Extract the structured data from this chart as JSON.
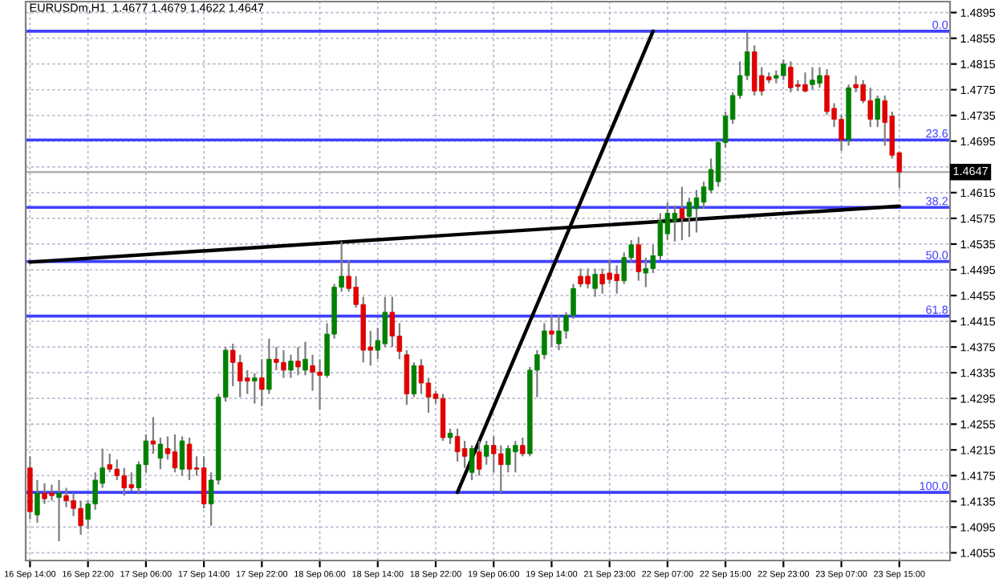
{
  "chart_data": {
    "type": "candlestick",
    "title": "EURUSDm,H1  1.4677 1.4679 1.4622 1.4647",
    "categories": [
      "16 Sep 14:00",
      null,
      null,
      null,
      null,
      null,
      null,
      null,
      "16 Sep 22:00",
      null,
      null,
      null,
      null,
      null,
      null,
      null,
      "17 Sep 06:00",
      null,
      null,
      null,
      null,
      null,
      null,
      null,
      "17 Sep 14:00",
      null,
      null,
      null,
      null,
      null,
      null,
      null,
      "17 Sep 22:00",
      null,
      null,
      null,
      null,
      null,
      null,
      null,
      "18 Sep 06:00",
      null,
      null,
      null,
      null,
      null,
      null,
      null,
      "18 Sep 14:00",
      null,
      null,
      null,
      null,
      null,
      null,
      null,
      "18 Sep 22:00",
      null,
      null,
      null,
      null,
      null,
      null,
      null,
      "19 Sep 06:00",
      null,
      null,
      null,
      null,
      null,
      null,
      null,
      "19 Sep 14:00",
      null,
      null,
      null,
      null,
      null,
      null,
      null,
      "21 Sep 23:00",
      null,
      null,
      null,
      null,
      null,
      null,
      null,
      "22 Sep 07:00",
      null,
      null,
      null,
      null,
      null,
      null,
      null,
      "22 Sep 15:00",
      null,
      null,
      null,
      null,
      null,
      null,
      null,
      "22 Sep 23:00",
      null,
      null,
      null,
      null,
      null,
      null,
      null,
      "23 Sep 07:00",
      null,
      null,
      null,
      null,
      null,
      null,
      null,
      "23 Sep 15:00"
    ],
    "ohlc": [
      [
        1.4187,
        1.4205,
        1.4107,
        1.4119
      ],
      [
        1.4114,
        1.4168,
        1.4102,
        1.4148
      ],
      [
        1.4148,
        1.4163,
        1.4131,
        1.4139
      ],
      [
        1.4148,
        1.4161,
        1.4136,
        1.4144
      ],
      [
        1.4141,
        1.4168,
        1.4073,
        1.4148
      ],
      [
        1.4144,
        1.4156,
        1.4126,
        1.4136
      ],
      [
        1.4136,
        1.4148,
        1.4112,
        1.4124
      ],
      [
        1.4124,
        1.4136,
        1.4083,
        1.4097
      ],
      [
        1.4107,
        1.4136,
        1.4092,
        1.4131
      ],
      [
        1.4131,
        1.418,
        1.4122,
        1.4168
      ],
      [
        1.4163,
        1.4217,
        1.4156,
        1.4187
      ],
      [
        1.4192,
        1.4209,
        1.418,
        1.4185
      ],
      [
        1.4185,
        1.42,
        1.4168,
        1.4175
      ],
      [
        1.4175,
        1.4187,
        1.4144,
        1.4156
      ],
      [
        1.4161,
        1.418,
        1.4151,
        1.4156
      ],
      [
        1.4156,
        1.4197,
        1.4146,
        1.4192
      ],
      [
        1.4192,
        1.4239,
        1.418,
        1.4229
      ],
      [
        1.4229,
        1.4266,
        1.4209,
        1.4224
      ],
      [
        1.4202,
        1.4234,
        1.4185,
        1.4224
      ],
      [
        1.4217,
        1.4236,
        1.42,
        1.4209
      ],
      [
        1.4212,
        1.4239,
        1.418,
        1.4187
      ],
      [
        1.4185,
        1.4236,
        1.4175,
        1.4229
      ],
      [
        1.4224,
        1.4234,
        1.4168,
        1.4185
      ],
      [
        1.4187,
        1.4205,
        1.4175,
        1.4185
      ],
      [
        1.4187,
        1.4205,
        1.4124,
        1.4131
      ],
      [
        1.4131,
        1.418,
        1.4097,
        1.4168
      ],
      [
        1.4168,
        1.4302,
        1.4161,
        1.4297
      ],
      [
        1.4297,
        1.4375,
        1.429,
        1.437
      ],
      [
        1.437,
        1.438,
        1.4314,
        1.4351
      ],
      [
        1.4351,
        1.4363,
        1.4297,
        1.4322
      ],
      [
        1.4327,
        1.4339,
        1.4302,
        1.4322
      ],
      [
        1.4322,
        1.4334,
        1.4287,
        1.4327
      ],
      [
        1.4327,
        1.4356,
        1.4283,
        1.4309
      ],
      [
        1.4309,
        1.4388,
        1.4302,
        1.4356
      ],
      [
        1.4356,
        1.4375,
        1.4339,
        1.4351
      ],
      [
        1.4351,
        1.437,
        1.4327,
        1.4339
      ],
      [
        1.4339,
        1.4363,
        1.4327,
        1.4353
      ],
      [
        1.4353,
        1.4375,
        1.4331,
        1.4344
      ],
      [
        1.4339,
        1.4383,
        1.4331,
        1.4356
      ],
      [
        1.4346,
        1.4363,
        1.4307,
        1.4336
      ],
      [
        1.4336,
        1.4356,
        1.4278,
        1.4331
      ],
      [
        1.4331,
        1.4412,
        1.4327,
        1.4395
      ],
      [
        1.4395,
        1.4473,
        1.4388,
        1.4468
      ],
      [
        1.4468,
        1.4539,
        1.4461,
        1.4485
      ],
      [
        1.4485,
        1.451,
        1.4461,
        1.4466
      ],
      [
        1.4468,
        1.4485,
        1.4436,
        1.4441
      ],
      [
        1.4441,
        1.4453,
        1.4351,
        1.437
      ],
      [
        1.4375,
        1.44,
        1.4346,
        1.437
      ],
      [
        1.437,
        1.4405,
        1.4356,
        1.4385
      ],
      [
        1.438,
        1.4453,
        1.4375,
        1.4429
      ],
      [
        1.4429,
        1.4453,
        1.4375,
        1.4392
      ],
      [
        1.4392,
        1.4412,
        1.4356,
        1.4368
      ],
      [
        1.4363,
        1.437,
        1.4285,
        1.4302
      ],
      [
        1.4302,
        1.4351,
        1.4297,
        1.4346
      ],
      [
        1.4346,
        1.4356,
        1.4302,
        1.4319
      ],
      [
        1.4319,
        1.4327,
        1.4273,
        1.4297
      ],
      [
        1.4302,
        1.4307,
        1.4287,
        1.4295
      ],
      [
        1.4295,
        1.4302,
        1.4229,
        1.4234
      ],
      [
        1.4234,
        1.4248,
        1.4224,
        1.4241
      ],
      [
        1.4236,
        1.4248,
        1.4197,
        1.4212
      ],
      [
        1.4217,
        1.4229,
        1.4187,
        1.4205
      ],
      [
        1.418,
        1.4222,
        1.4168,
        1.4217
      ],
      [
        1.4212,
        1.4229,
        1.4175,
        1.4185
      ],
      [
        1.4205,
        1.4229,
        1.4192,
        1.4222
      ],
      [
        1.4222,
        1.4236,
        1.418,
        1.4209
      ],
      [
        1.4209,
        1.4222,
        1.4148,
        1.4192
      ],
      [
        1.4192,
        1.4222,
        1.418,
        1.4217
      ],
      [
        1.4212,
        1.4229,
        1.418,
        1.4222
      ],
      [
        1.4222,
        1.4234,
        1.4205,
        1.4209
      ],
      [
        1.4209,
        1.4344,
        1.4205,
        1.4339
      ],
      [
        1.4339,
        1.437,
        1.4297,
        1.4363
      ],
      [
        1.4363,
        1.4412,
        1.4356,
        1.44
      ],
      [
        1.44,
        1.4424,
        1.4375,
        1.4395
      ],
      [
        1.438,
        1.4424,
        1.437,
        1.44
      ],
      [
        1.44,
        1.4429,
        1.4388,
        1.4424
      ],
      [
        1.4424,
        1.4473,
        1.4419,
        1.4466
      ],
      [
        1.4485,
        1.4497,
        1.4468,
        1.4473
      ],
      [
        1.4485,
        1.4497,
        1.4466,
        1.4473
      ],
      [
        1.4466,
        1.4497,
        1.4453,
        1.4488
      ],
      [
        1.4488,
        1.4497,
        1.4458,
        1.4473
      ],
      [
        1.449,
        1.451,
        1.4473,
        1.448
      ],
      [
        1.4488,
        1.4502,
        1.4458,
        1.4478
      ],
      [
        1.4478,
        1.4522,
        1.4473,
        1.4514
      ],
      [
        1.4514,
        1.4541,
        1.4507,
        1.4534
      ],
      [
        1.4534,
        1.4546,
        1.4478,
        1.4492
      ],
      [
        1.449,
        1.4514,
        1.4468,
        1.4497
      ],
      [
        1.4497,
        1.4534,
        1.449,
        1.4517
      ],
      [
        1.4517,
        1.4583,
        1.451,
        1.4571
      ],
      [
        1.4551,
        1.46,
        1.4541,
        1.4583
      ],
      [
        1.4571,
        1.4595,
        1.4539,
        1.4583
      ],
      [
        1.459,
        1.4624,
        1.4541,
        1.4575
      ],
      [
        1.4578,
        1.4607,
        1.4546,
        1.46
      ],
      [
        1.459,
        1.4619,
        1.4553,
        1.4607
      ],
      [
        1.46,
        1.4632,
        1.459,
        1.4624
      ],
      [
        1.4619,
        1.4668,
        1.4614,
        1.4651
      ],
      [
        1.4632,
        1.4697,
        1.4624,
        1.4693
      ],
      [
        1.4693,
        1.4741,
        1.4685,
        1.4734
      ],
      [
        1.4729,
        1.4771,
        1.4722,
        1.4766
      ],
      [
        1.4766,
        1.4819,
        1.4761,
        1.4797
      ],
      [
        1.4797,
        1.4866,
        1.479,
        1.4834
      ],
      [
        1.4834,
        1.4844,
        1.4766,
        1.4773
      ],
      [
        1.4797,
        1.481,
        1.4766,
        1.4773
      ],
      [
        1.4795,
        1.4802,
        1.4785,
        1.479
      ],
      [
        1.4793,
        1.4805,
        1.4785,
        1.4797
      ],
      [
        1.4797,
        1.4822,
        1.479,
        1.4815
      ],
      [
        1.481,
        1.4819,
        1.4771,
        1.4778
      ],
      [
        1.4783,
        1.479,
        1.4773,
        1.478
      ],
      [
        1.4783,
        1.4802,
        1.4771,
        1.4773
      ],
      [
        1.4783,
        1.481,
        1.4775,
        1.479
      ],
      [
        1.4785,
        1.481,
        1.4778,
        1.4797
      ],
      [
        1.4797,
        1.4807,
        1.4736,
        1.4741
      ],
      [
        1.4746,
        1.4754,
        1.4717,
        1.4729
      ],
      [
        1.4729,
        1.4736,
        1.468,
        1.4697
      ],
      [
        1.4697,
        1.4783,
        1.4688,
        1.4778
      ],
      [
        1.4783,
        1.4797,
        1.4771,
        1.4778
      ],
      [
        1.4783,
        1.479,
        1.4754,
        1.4758
      ],
      [
        1.4758,
        1.4778,
        1.4717,
        1.4729
      ],
      [
        1.4729,
        1.4766,
        1.4717,
        1.4761
      ],
      [
        1.4758,
        1.4766,
        1.4688,
        1.4724
      ],
      [
        1.4734,
        1.4741,
        1.4668,
        1.4673
      ],
      [
        1.4677,
        1.4679,
        1.4622,
        1.4647
      ]
    ],
    "colors": [
      "#e00000",
      "#008000",
      "#e00000",
      "#e00000",
      "#008000",
      "#e00000",
      "#e00000",
      "#e00000",
      "#008000",
      "#008000",
      "#008000",
      "#e00000",
      "#e00000",
      "#e00000",
      "#e00000",
      "#008000",
      "#008000",
      "#e00000",
      "#008000",
      "#e00000",
      "#e00000",
      "#008000",
      "#e00000",
      "#e00000",
      "#e00000",
      "#008000",
      "#008000",
      "#008000",
      "#e00000",
      "#e00000",
      "#e00000",
      "#008000",
      "#e00000",
      "#008000",
      "#e00000",
      "#e00000",
      "#008000",
      "#e00000",
      "#008000",
      "#e00000",
      "#e00000",
      "#008000",
      "#008000",
      "#008000",
      "#e00000",
      "#e00000",
      "#e00000",
      "#e00000",
      "#008000",
      "#008000",
      "#e00000",
      "#e00000",
      "#e00000",
      "#008000",
      "#e00000",
      "#e00000",
      "#e00000",
      "#e00000",
      "#008000",
      "#e00000",
      "#e00000",
      "#008000",
      "#e00000",
      "#008000",
      "#e00000",
      "#e00000",
      "#008000",
      "#008000",
      "#e00000",
      "#008000",
      "#008000",
      "#008000",
      "#e00000",
      "#008000",
      "#008000",
      "#008000",
      "#e00000",
      "#e00000",
      "#008000",
      "#e00000",
      "#e00000",
      "#e00000",
      "#008000",
      "#008000",
      "#e00000",
      "#008000",
      "#008000",
      "#008000",
      "#008000",
      "#008000",
      "#e00000",
      "#008000",
      "#008000",
      "#008000",
      "#008000",
      "#008000",
      "#008000",
      "#008000",
      "#008000",
      "#008000",
      "#e00000",
      "#e00000",
      "#e00000",
      "#008000",
      "#008000",
      "#e00000",
      "#e00000",
      "#e00000",
      "#008000",
      "#008000",
      "#e00000",
      "#e00000",
      "#e00000",
      "#008000",
      "#e00000",
      "#e00000",
      "#e00000",
      "#008000",
      "#e00000",
      "#e00000",
      "#e00000"
    ],
    "series": [
      {
        "type": "line",
        "color": "#000000",
        "values": [
          1.4507,
          null,
          null,
          null,
          null,
          null,
          null,
          null,
          null,
          null,
          null,
          null,
          null,
          null,
          null,
          null,
          null,
          null,
          null,
          null,
          null,
          null,
          null,
          null,
          null,
          null,
          null,
          null,
          null,
          null,
          null,
          null,
          null,
          null,
          null,
          null,
          null,
          null,
          null,
          null,
          null,
          null,
          null,
          null,
          null,
          null,
          null,
          null,
          null,
          null,
          null,
          null,
          null,
          null,
          null,
          null,
          null,
          null,
          null,
          null,
          null,
          null,
          null,
          null,
          null,
          null,
          null,
          null,
          null,
          null,
          null,
          null,
          null,
          null,
          null,
          null,
          null,
          null,
          null,
          null,
          null,
          null,
          null,
          null,
          null,
          null,
          null,
          null,
          null,
          null,
          null,
          null,
          null,
          null,
          null,
          null,
          null,
          null,
          null,
          null,
          null,
          null,
          null,
          null,
          null,
          null,
          null,
          null,
          null,
          null,
          null,
          null,
          null,
          null,
          null,
          null,
          null,
          null,
          null,
          null,
          1.4594
        ]
      },
      {
        "type": "line",
        "color": "#000000",
        "values": [
          null,
          null,
          null,
          null,
          null,
          null,
          null,
          null,
          null,
          null,
          null,
          null,
          null,
          null,
          null,
          null,
          null,
          null,
          null,
          null,
          null,
          null,
          null,
          null,
          null,
          null,
          null,
          null,
          null,
          null,
          null,
          null,
          null,
          null,
          null,
          null,
          null,
          null,
          null,
          null,
          null,
          null,
          null,
          null,
          null,
          null,
          null,
          null,
          null,
          null,
          null,
          null,
          null,
          null,
          null,
          null,
          null,
          null,
          null,
          1.4149,
          null,
          null,
          null,
          null,
          null,
          null,
          null,
          null,
          null,
          null,
          null,
          null,
          null,
          null,
          null,
          null,
          null,
          null,
          null,
          null,
          null,
          null,
          null,
          null,
          null,
          null,
          1.4866,
          null,
          null,
          null,
          null,
          null,
          null,
          null,
          null,
          null,
          null,
          null,
          null,
          null,
          null,
          null,
          null,
          null,
          null,
          null,
          null,
          null,
          null,
          null,
          null,
          null,
          null,
          null,
          null,
          null,
          null,
          null,
          null,
          null,
          null
        ]
      }
    ],
    "ylim": [
      1.4043,
      1.4912
    ],
    "yticks": [
      1.4055,
      1.4095,
      1.4135,
      1.4175,
      1.4215,
      1.4255,
      1.4295,
      1.4335,
      1.4375,
      1.4415,
      1.4455,
      1.4495,
      1.4535,
      1.4575,
      1.4615,
      {
        "value": 1.4655,
        "label": null
      },
      1.4695,
      1.4735,
      1.4775,
      1.4815,
      1.4855,
      1.4895
    ],
    "ref_lines": [
      {
        "axis": "y",
        "value": 1.4866,
        "color": "#4040ff"
      },
      {
        "axis": "y",
        "value": 1.4697,
        "color": "#4040ff"
      },
      {
        "axis": "y",
        "value": 1.4592,
        "color": "#4040ff"
      },
      {
        "axis": "y",
        "value": 1.4508,
        "color": "#4040ff"
      },
      {
        "axis": "y",
        "value": 1.4423,
        "color": "#4040ff"
      },
      {
        "axis": "y",
        "value": 1.4149,
        "color": "#4040ff"
      },
      {
        "axis": "y",
        "value": 1.4647,
        "label": "1.4647",
        "color": "#b0b0b0"
      }
    ],
    "annotations": [
      {
        "text": "0.0",
        "y": 1.4866
      },
      {
        "text": "23.6",
        "y": 1.4697
      },
      {
        "text": "38.2",
        "y": 1.4592
      },
      {
        "text": "50.0",
        "y": 1.4508
      },
      {
        "text": "61.8",
        "y": 1.4423
      },
      {
        "text": "100.0",
        "y": 1.4149
      }
    ],
    "grid": true
  }
}
